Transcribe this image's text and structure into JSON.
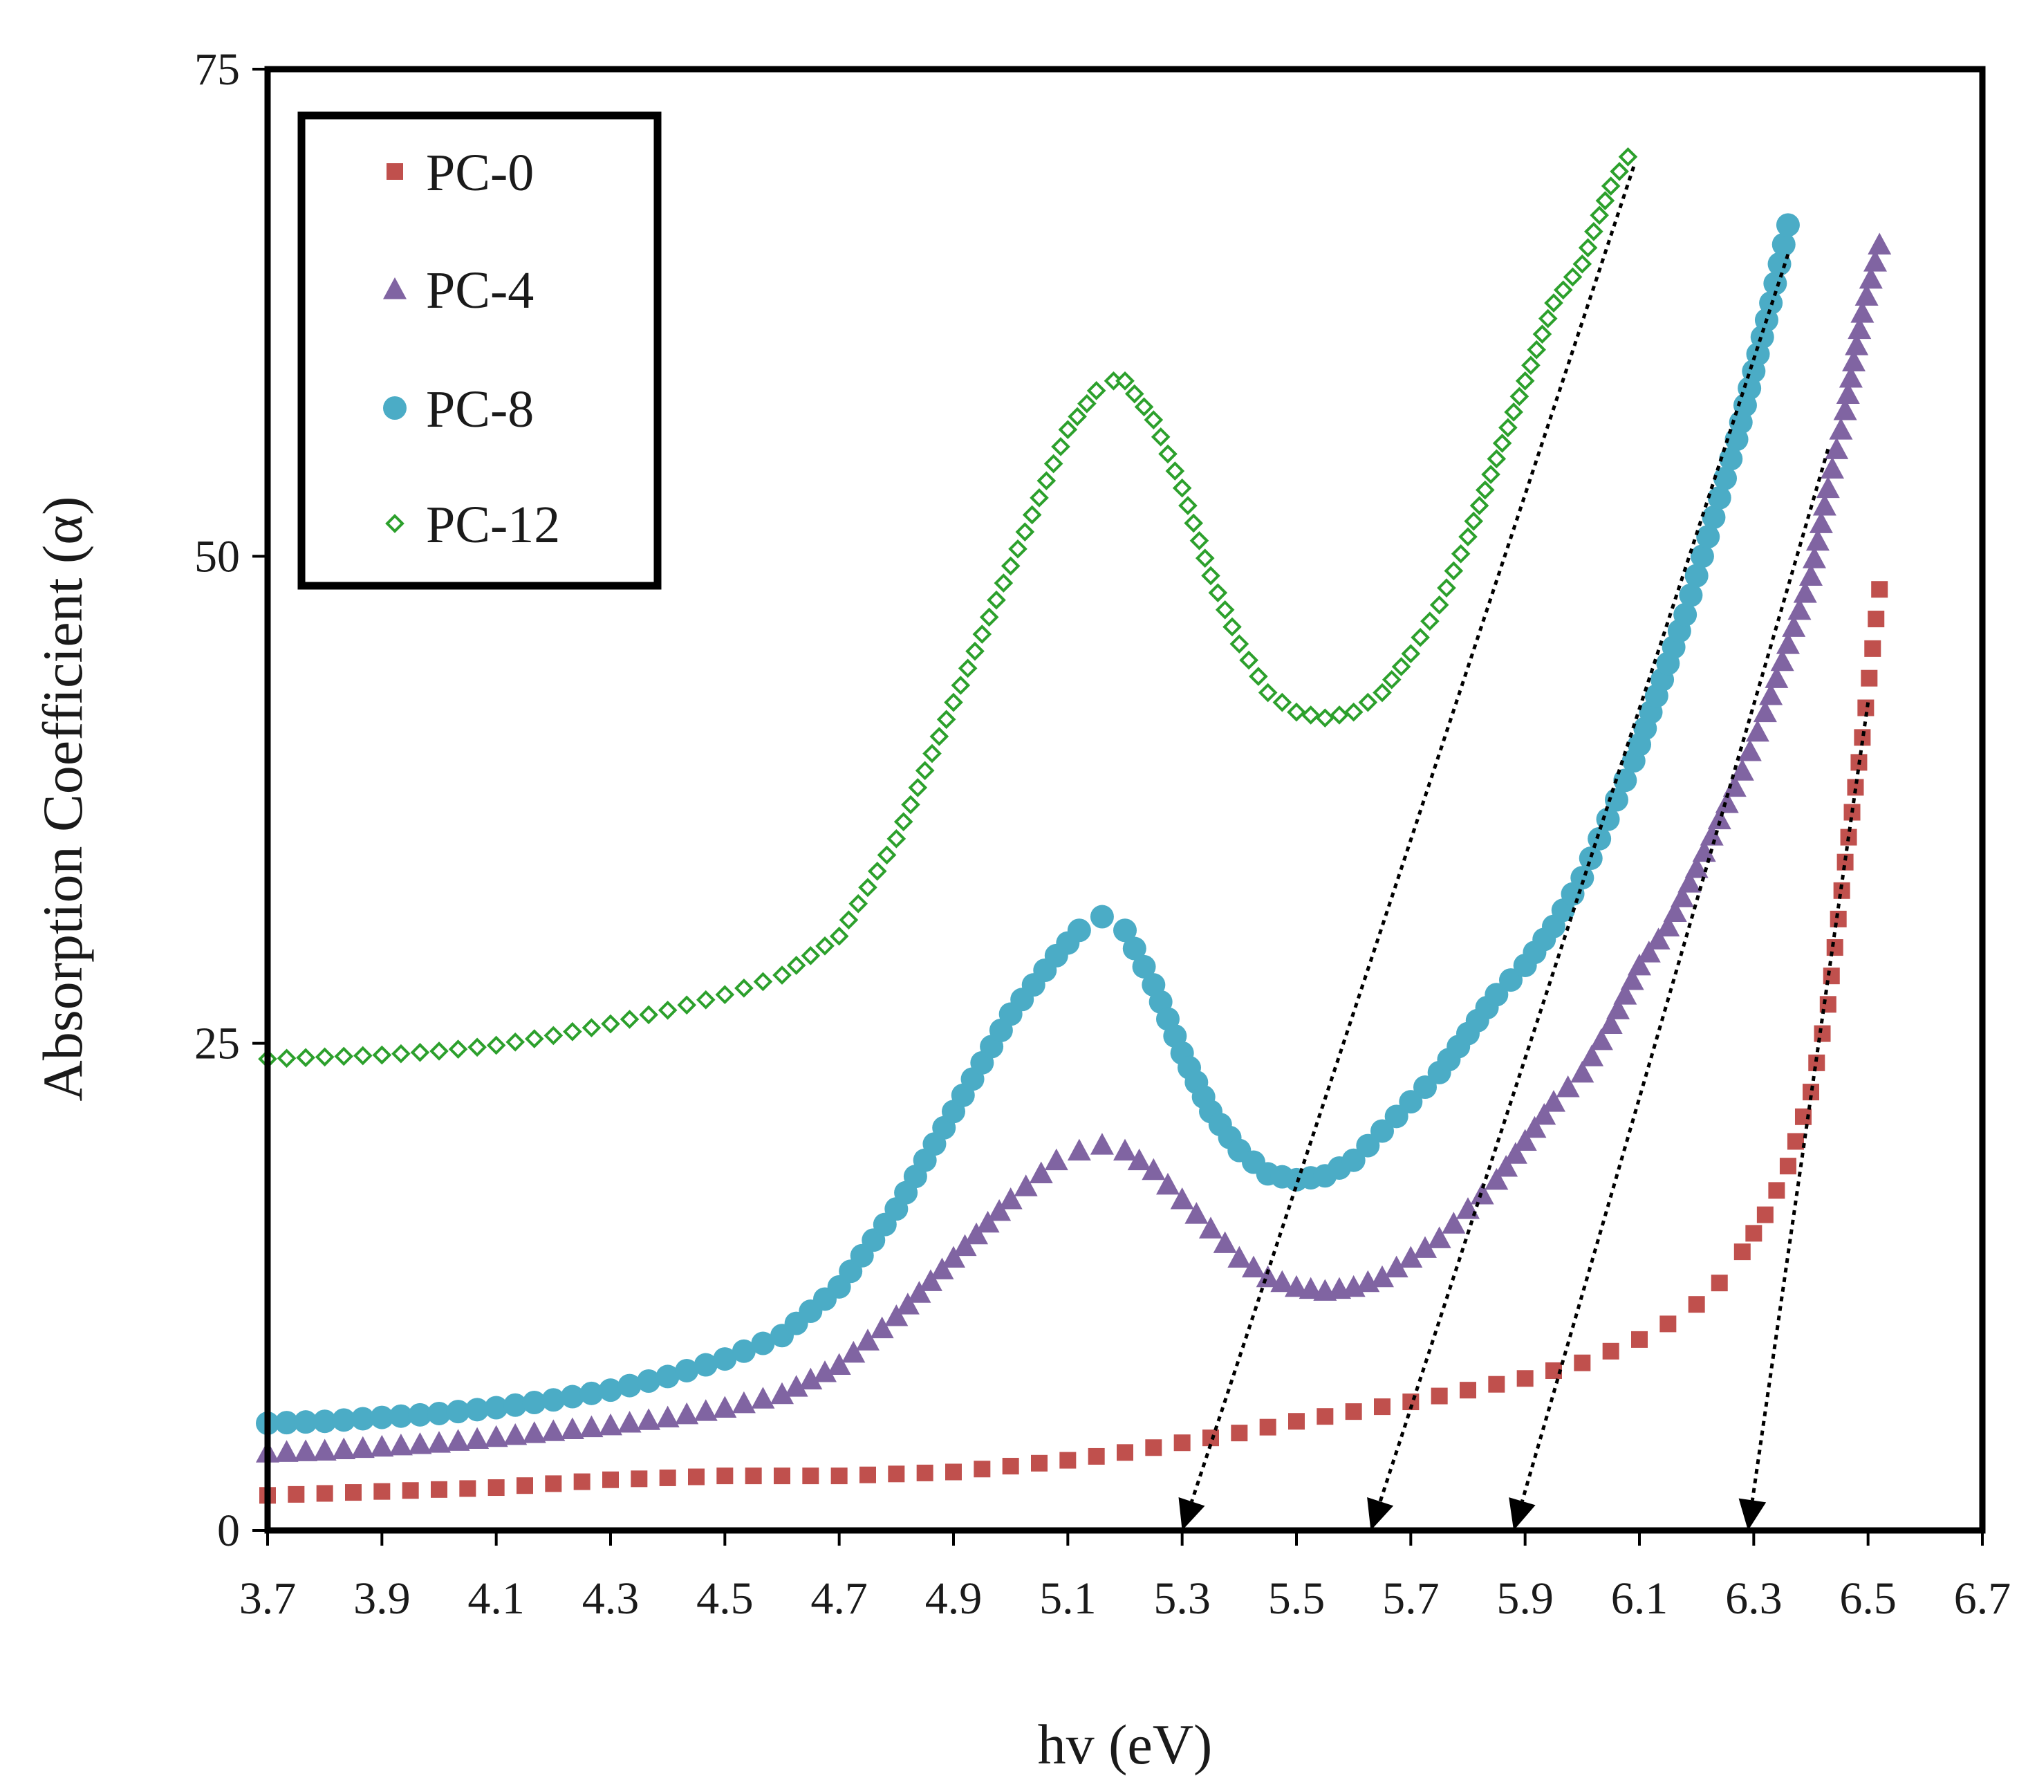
{
  "chart_data": {
    "type": "scatter",
    "title": "",
    "xlabel": "hv (eV)",
    "ylabel": "Absorption Coefficient (α)",
    "xlim": [
      3.7,
      6.7
    ],
    "ylim": [
      0,
      75
    ],
    "x_ticks": [
      "3.7",
      "3.9",
      "4.1",
      "4.3",
      "4.5",
      "4.7",
      "4.9",
      "5.1",
      "5.3",
      "5.5",
      "5.7",
      "5.9",
      "6.1",
      "6.3",
      "6.5",
      "6.7"
    ],
    "y_ticks": [
      "0",
      "25",
      "50",
      "75"
    ],
    "legend_position": "top-left",
    "series": [
      {
        "name": "PC-0",
        "marker": "square",
        "color": "#C0504D",
        "x": [
          3.7,
          3.8,
          3.9,
          4.0,
          4.1,
          4.2,
          4.3,
          4.4,
          4.5,
          4.6,
          4.7,
          4.8,
          4.9,
          5.0,
          5.1,
          5.2,
          5.3,
          5.4,
          5.5,
          5.6,
          5.7,
          5.8,
          5.9,
          6.0,
          6.1,
          6.15,
          6.2,
          6.24,
          6.28,
          6.32,
          6.36,
          6.4,
          6.43,
          6.46,
          6.49,
          6.52
        ],
        "y": [
          1.8,
          1.9,
          2.0,
          2.1,
          2.2,
          2.4,
          2.6,
          2.7,
          2.8,
          2.8,
          2.8,
          2.9,
          3.0,
          3.3,
          3.6,
          4.0,
          4.5,
          5.0,
          5.6,
          6.1,
          6.6,
          7.2,
          7.8,
          8.6,
          9.8,
          10.6,
          11.6,
          12.7,
          14.3,
          16.2,
          18.7,
          22.5,
          27.0,
          34.3,
          40.7,
          48.3
        ]
      },
      {
        "name": "PC-4",
        "marker": "triangle",
        "color": "#8064A2",
        "x": [
          3.7,
          3.8,
          3.9,
          4.0,
          4.1,
          4.2,
          4.3,
          4.4,
          4.5,
          4.6,
          4.7,
          4.8,
          4.9,
          5.0,
          5.08,
          5.12,
          5.16,
          5.2,
          5.25,
          5.3,
          5.35,
          5.4,
          5.45,
          5.5,
          5.55,
          5.6,
          5.65,
          5.7,
          5.75,
          5.8,
          5.85,
          5.9,
          5.95,
          6.0,
          6.05,
          6.1,
          6.15,
          6.2,
          6.24,
          6.28,
          6.32,
          6.36,
          6.4,
          6.43,
          6.46,
          6.49,
          6.52
        ],
        "y": [
          4.0,
          4.1,
          4.3,
          4.5,
          4.8,
          5.1,
          5.4,
          5.8,
          6.3,
          7.0,
          8.5,
          11.0,
          14.0,
          17.0,
          19.0,
          19.5,
          19.8,
          19.5,
          18.5,
          17.0,
          15.5,
          14.0,
          13.0,
          12.5,
          12.3,
          12.5,
          13.0,
          14.0,
          15.0,
          16.5,
          18.0,
          20.0,
          22.0,
          23.5,
          26.0,
          29.0,
          31.0,
          34.0,
          36.5,
          39.0,
          42.0,
          45.5,
          49.0,
          53.5,
          57.5,
          62.5,
          66.0
        ]
      },
      {
        "name": "PC-8",
        "marker": "circle",
        "color": "#4BACC6",
        "x": [
          3.7,
          3.8,
          3.9,
          4.0,
          4.1,
          4.2,
          4.3,
          4.4,
          4.5,
          4.6,
          4.7,
          4.8,
          4.9,
          5.0,
          5.08,
          5.12,
          5.16,
          5.2,
          5.25,
          5.3,
          5.35,
          5.4,
          5.45,
          5.5,
          5.55,
          5.6,
          5.65,
          5.7,
          5.75,
          5.8,
          5.85,
          5.9,
          5.95,
          6.0,
          6.03,
          6.06,
          6.09,
          6.12,
          6.15,
          6.18,
          6.21,
          6.24,
          6.27,
          6.3,
          6.33,
          6.36
        ],
        "y": [
          5.5,
          5.6,
          5.8,
          6.0,
          6.3,
          6.7,
          7.2,
          7.9,
          8.8,
          10.0,
          12.5,
          16.5,
          21.5,
          26.5,
          29.5,
          30.8,
          31.5,
          30.8,
          28.0,
          24.5,
          21.5,
          19.5,
          18.3,
          18.0,
          18.2,
          19.0,
          20.5,
          22.0,
          23.5,
          25.5,
          27.5,
          29.0,
          31.0,
          33.5,
          35.5,
          37.5,
          39.5,
          42.0,
          44.5,
          47.0,
          50.0,
          53.0,
          56.0,
          59.5,
          63.0,
          67.0
        ]
      },
      {
        "name": "PC-12",
        "marker": "diamond-open",
        "color": "#2CA02C",
        "x": [
          3.7,
          3.8,
          3.9,
          4.0,
          4.1,
          4.2,
          4.3,
          4.4,
          4.5,
          4.6,
          4.7,
          4.8,
          4.9,
          5.0,
          5.05,
          5.1,
          5.15,
          5.18,
          5.2,
          5.25,
          5.3,
          5.35,
          5.4,
          5.45,
          5.5,
          5.55,
          5.6,
          5.65,
          5.7,
          5.75,
          5.8,
          5.85,
          5.9,
          5.95,
          6.0,
          6.03,
          6.05,
          6.08
        ],
        "y": [
          24.2,
          24.3,
          24.4,
          24.6,
          24.9,
          25.4,
          26.0,
          26.7,
          27.5,
          28.5,
          30.5,
          35.5,
          42.5,
          49.5,
          53.0,
          56.5,
          58.5,
          59.0,
          59.0,
          57.0,
          53.5,
          49.0,
          45.5,
          43.0,
          42.0,
          41.7,
          42.0,
          43.0,
          45.0,
          47.5,
          51.0,
          55.0,
          59.0,
          63.0,
          65.0,
          67.5,
          69.0,
          70.5
        ]
      }
    ],
    "annotations": [
      {
        "type": "dotted-arrow",
        "from": [
          6.09,
          70.0
        ],
        "to": [
          5.3,
          0.0
        ]
      },
      {
        "type": "dotted-arrow",
        "from": [
          6.36,
          65.5
        ],
        "to": [
          5.63,
          0.0
        ]
      },
      {
        "type": "dotted-arrow",
        "from": [
          6.43,
          55.5
        ],
        "to": [
          5.88,
          0.0
        ]
      },
      {
        "type": "dotted-arrow",
        "from": [
          6.5,
          42.5
        ],
        "to": [
          6.29,
          0.0
        ]
      }
    ]
  }
}
